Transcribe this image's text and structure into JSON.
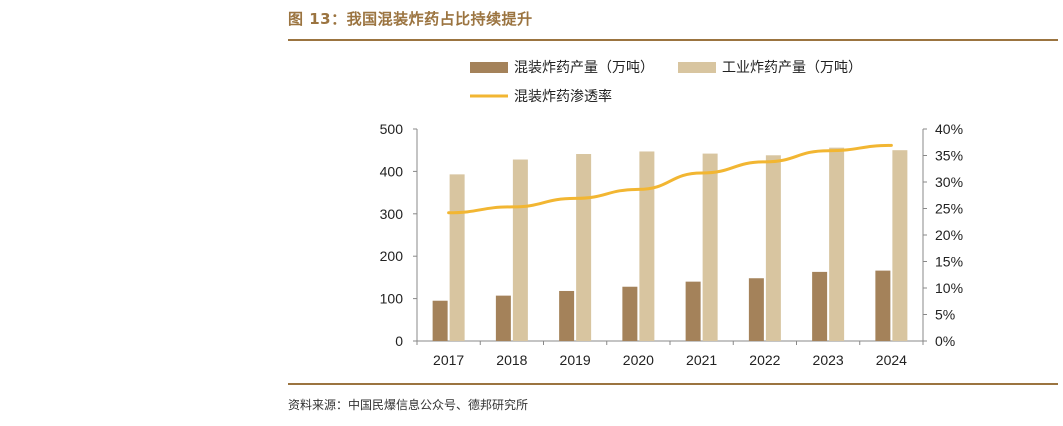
{
  "figure": {
    "title": "图 13：我国混装炸药占比持续提升",
    "source": "资料来源：中国民爆信息公众号、德邦研究所"
  },
  "colors": {
    "bar_mixed": "#a4825a",
    "bar_industrial": "#d8c5a0",
    "line": "#f2b632",
    "accent": "#9b7440"
  },
  "chart_data": {
    "type": "bar",
    "categories": [
      "2017",
      "2018",
      "2019",
      "2020",
      "2021",
      "2022",
      "2023",
      "2024"
    ],
    "series": [
      {
        "name": "混装炸药产量（万吨）",
        "type": "bar",
        "axis": "left",
        "values": [
          95,
          107,
          118,
          128,
          140,
          148,
          163,
          166
        ]
      },
      {
        "name": "工业炸药产量（万吨）",
        "type": "bar",
        "axis": "left",
        "values": [
          393,
          428,
          441,
          447,
          442,
          438,
          456,
          450
        ]
      },
      {
        "name": "混装炸药渗透率",
        "type": "line",
        "axis": "right",
        "values": [
          24.2,
          25.3,
          26.9,
          28.6,
          31.7,
          33.8,
          35.9,
          36.9
        ]
      }
    ],
    "y_left": {
      "ylim": [
        0,
        500
      ],
      "ticks": [
        "0",
        "100",
        "200",
        "300",
        "400",
        "500"
      ]
    },
    "y_right": {
      "ylim": [
        0,
        40
      ],
      "ticks": [
        "0%",
        "5%",
        "10%",
        "15%",
        "20%",
        "25%",
        "30%",
        "35%",
        "40%"
      ]
    },
    "grid": false,
    "legend_position": "top"
  }
}
